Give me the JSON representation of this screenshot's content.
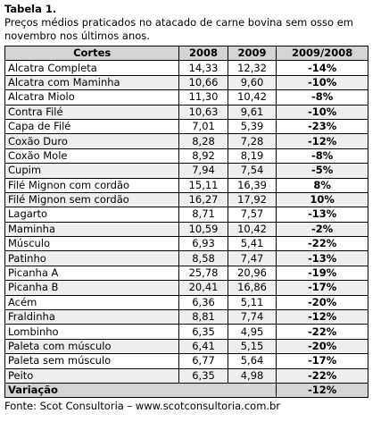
{
  "title": "Tabela 1.",
  "caption": "Preços médios praticados no atacado de carne bovina sem osso em novembro nos últimos anos.",
  "table": {
    "header": [
      "Cortes",
      "2008",
      "2009",
      "2009/2008"
    ],
    "rows": [
      [
        "Alcatra Completa",
        "14,33",
        "12,32",
        "-14%"
      ],
      [
        "Alcatra com Maminha",
        "10,66",
        "9,60",
        "-10%"
      ],
      [
        "Alcatra Miolo",
        "11,30",
        "10,42",
        "-8%"
      ],
      [
        "Contra Filé",
        "10,63",
        "9,61",
        "-10%"
      ],
      [
        "Capa de Filé",
        "7,01",
        "5,39",
        "-23%"
      ],
      [
        "Coxão Duro",
        "8,28",
        "7,28",
        "-12%"
      ],
      [
        "Coxão Mole",
        "8,92",
        "8,19",
        "-8%"
      ],
      [
        "Cupim",
        "7,94",
        "7,54",
        "-5%"
      ],
      [
        "Filé Mignon com cordão",
        "15,11",
        "16,39",
        "8%"
      ],
      [
        "Filé Mignon sem cordão",
        "16,27",
        "17,92",
        "10%"
      ],
      [
        "Lagarto",
        "8,71",
        "7,57",
        "-13%"
      ],
      [
        "Maminha",
        "10,59",
        "10,42",
        "-2%"
      ],
      [
        "Músculo",
        "6,93",
        "5,41",
        "-22%"
      ],
      [
        "Patinho",
        "8,58",
        "7,47",
        "-13%"
      ],
      [
        "Picanha A",
        "25,78",
        "20,96",
        "-19%"
      ],
      [
        "Picanha B",
        "20,41",
        "16,86",
        "-17%"
      ],
      [
        "Acém",
        "6,36",
        "5,11",
        "-20%"
      ],
      [
        "Fraldinha",
        "8,81",
        "7,74",
        "-12%"
      ],
      [
        "Lombinho",
        "6,35",
        "4,95",
        "-22%"
      ],
      [
        "Paleta com músculo",
        "6,41",
        "5,15",
        "-20%"
      ],
      [
        "Paleta sem músculo",
        "6,77",
        "5,64",
        "-17%"
      ],
      [
        "Peito",
        "6,35",
        "4,98",
        "-22%"
      ]
    ],
    "footer": {
      "label": "Variação",
      "value": "-12%"
    }
  },
  "source": "Fonte: Scot Consultoria – www.scotconsultoria.com.br"
}
